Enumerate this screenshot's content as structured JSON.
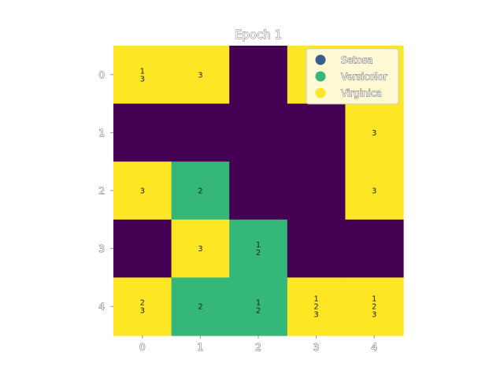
{
  "chart_data": {
    "type": "heatmap",
    "title": "Epoch 1",
    "xlabel": "",
    "ylabel": "",
    "x_ticks": [
      "0",
      "1",
      "2",
      "3",
      "4"
    ],
    "y_ticks": [
      "0",
      "1",
      "2",
      "3",
      "4"
    ],
    "grid": false,
    "legend_placement": "top-right",
    "legend": [
      {
        "name": "Setosa",
        "color": "#3b5f8c"
      },
      {
        "name": "Versicolor",
        "color": "#35b779"
      },
      {
        "name": "Virginica",
        "color": "#fde725"
      }
    ],
    "empty_color": "#440154",
    "cells": [
      [
        {
          "cls": "Virginica",
          "labels": [
            "1",
            "3"
          ]
        },
        {
          "cls": "Virginica",
          "labels": [
            "3"
          ]
        },
        {
          "cls": "",
          "labels": []
        },
        {
          "cls": "Virginica",
          "labels": [
            "3"
          ]
        },
        {
          "cls": "Virginica",
          "labels": [
            "3"
          ]
        }
      ],
      [
        {
          "cls": "",
          "labels": []
        },
        {
          "cls": "",
          "labels": []
        },
        {
          "cls": "",
          "labels": []
        },
        {
          "cls": "",
          "labels": []
        },
        {
          "cls": "Virginica",
          "labels": [
            "3"
          ]
        }
      ],
      [
        {
          "cls": "Virginica",
          "labels": [
            "3"
          ]
        },
        {
          "cls": "Versicolor",
          "labels": [
            "2"
          ]
        },
        {
          "cls": "",
          "labels": []
        },
        {
          "cls": "",
          "labels": []
        },
        {
          "cls": "Virginica",
          "labels": [
            "3"
          ]
        }
      ],
      [
        {
          "cls": "",
          "labels": []
        },
        {
          "cls": "Virginica",
          "labels": [
            "3"
          ]
        },
        {
          "cls": "Versicolor",
          "labels": [
            "1",
            "2"
          ]
        },
        {
          "cls": "",
          "labels": []
        },
        {
          "cls": "",
          "labels": []
        }
      ],
      [
        {
          "cls": "Virginica",
          "labels": [
            "2",
            "3"
          ]
        },
        {
          "cls": "Versicolor",
          "labels": [
            "2"
          ]
        },
        {
          "cls": "Versicolor",
          "labels": [
            "1",
            "2"
          ]
        },
        {
          "cls": "Virginica",
          "labels": [
            "1",
            "2",
            "3"
          ]
        },
        {
          "cls": "Virginica",
          "labels": [
            "1",
            "2",
            "3"
          ]
        }
      ]
    ]
  }
}
